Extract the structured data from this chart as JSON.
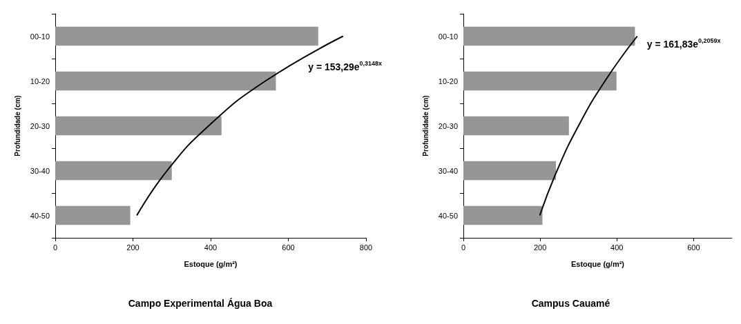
{
  "chart_data": [
    {
      "type": "bar",
      "orientation": "horizontal",
      "title": "Campo Experimental Água Boa",
      "xlabel": "Estoque (g/m²)",
      "ylabel": "Profundidade (cm)",
      "categories": [
        "00-10",
        "10-20",
        "20-30",
        "30-40",
        "40-50"
      ],
      "xlim": [
        0,
        800
      ],
      "xticks": [
        0,
        200,
        400,
        600,
        800
      ],
      "grid": false,
      "annotations": [
        "y = 153,29e$^{0,3148x}$"
      ],
      "series": [
        {
          "color": "#969696",
          "values": [
            677,
            568,
            428,
            300,
            193
          ]
        },
        {
          "type": "line",
          "color": "#000000",
          "marker": "none",
          "line_style": "solid",
          "values": [
            741,
            541,
            395,
            288,
            210
          ]
        }
      ]
    },
    {
      "type": "bar",
      "orientation": "horizontal",
      "title": "Campus Cauamé",
      "xlabel": "Estoque (g/m²)",
      "ylabel": "Profundidade (cm)",
      "categories": [
        "00-10",
        "10-20",
        "20-30",
        "30-40",
        "40-50"
      ],
      "xlim": [
        0,
        700
      ],
      "xticks": [
        0,
        200,
        400,
        600
      ],
      "grid": false,
      "annotations": [
        "y = 161,83e$^{0,2059x}$"
      ],
      "series": [
        {
          "color": "#969696",
          "values": [
            447,
            399,
            275,
            241,
            206
          ]
        },
        {
          "type": "line",
          "color": "#000000",
          "marker": "none",
          "line_style": "solid",
          "values": [
            453,
            369,
            300,
            244,
            199
          ]
        }
      ]
    }
  ]
}
